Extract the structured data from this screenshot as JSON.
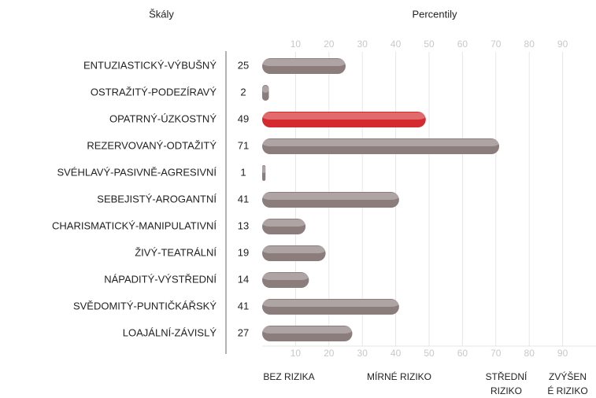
{
  "chart_data": {
    "type": "bar",
    "orientation": "horizontal",
    "category_header": "Škály",
    "title": "Percentily",
    "categories": [
      "ENTUZIASTICKÝ-VÝBUŠNÝ",
      "OSTRAŽITÝ-PODEZÍRAVÝ",
      "OPATRNÝ-ÚZKOSTNÝ",
      "REZERVOVANÝ-ODTAŽITÝ",
      "SVÉHLAVÝ-PASIVNĚ-AGRESIVNÍ",
      "SEBEJISTÝ-AROGANTNÍ",
      "CHARISMATICKÝ-MANIPULATIVNÍ",
      "ŽIVÝ-TEATRÁLNÍ",
      "NÁPADITÝ-VÝSTŘEDNÍ",
      "SVĚDOMITÝ-PUNTIČKÁŘSKÝ",
      "LOAJÁLNÍ-ZÁVISLÝ"
    ],
    "values": [
      25,
      2,
      49,
      71,
      1,
      41,
      13,
      19,
      14,
      41,
      27
    ],
    "colors": [
      "#8c7d7d",
      "#8c7d7d",
      "#d42a2f",
      "#8c7d7d",
      "#8c7d7d",
      "#8c7d7d",
      "#8c7d7d",
      "#8c7d7d",
      "#8c7d7d",
      "#8c7d7d",
      "#8c7d7d"
    ],
    "xlim": [
      0,
      100
    ],
    "xticks": [
      10,
      20,
      30,
      40,
      50,
      60,
      70,
      80,
      90
    ],
    "grid": true,
    "zones": [
      [
        "BEZ RIZIKA"
      ],
      [
        "MÍRNÉ RIZIKO"
      ],
      [
        "STŘEDNÍ",
        "RIZIKO"
      ],
      [
        "ZVÝŠEN",
        "É RIZIKO"
      ]
    ]
  }
}
